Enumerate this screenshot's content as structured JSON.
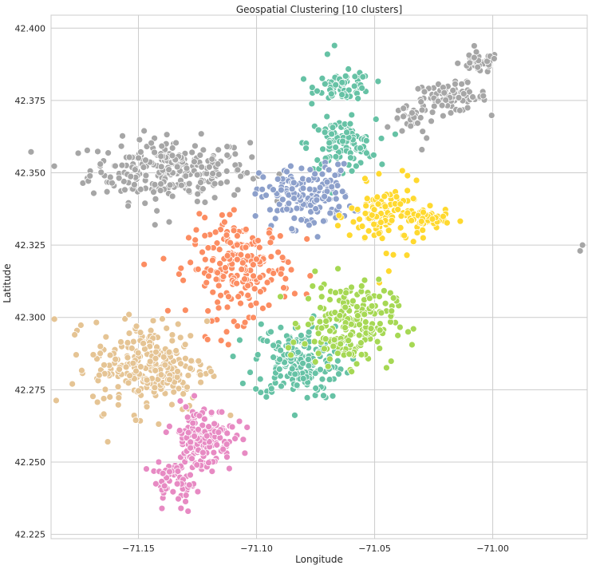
{
  "chart_data": {
    "type": "scatter",
    "title": "Geospatial Clustering [10 clusters]",
    "xlabel": "Longitude",
    "ylabel": "Latitude",
    "xlim": [
      -71.187,
      -70.96
    ],
    "ylim": [
      42.2235,
      42.4045
    ],
    "xticks": [
      -71.15,
      -71.1,
      -71.05,
      -71.0
    ],
    "xtick_labels": [
      "−71.15",
      "−71.10",
      "−71.05",
      "−71.00"
    ],
    "yticks": [
      42.225,
      42.25,
      42.275,
      42.3,
      42.325,
      42.35,
      42.375,
      42.4
    ],
    "ytick_labels": [
      "42.225",
      "42.250",
      "42.275",
      "42.300",
      "42.325",
      "42.350",
      "42.375",
      "42.400"
    ],
    "grid": true,
    "series": [
      {
        "color": "#a6a6a6",
        "regions": [
          {
            "center": [
              -71.137,
              42.351
            ],
            "spread": [
              0.028,
              0.009
            ],
            "n": 260
          },
          {
            "center": [
              -71.018,
              42.376
            ],
            "spread": [
              0.013,
              0.004
            ],
            "n": 90
          },
          {
            "center": [
              -71.006,
              42.388
            ],
            "spread": [
              0.007,
              0.003
            ],
            "n": 45
          },
          {
            "center": [
              -71.035,
              42.368
            ],
            "spread": [
              0.006,
              0.004
            ],
            "n": 25
          }
        ],
        "points": [
          [
            -71.143,
            42.332
          ],
          [
            -71.137,
            42.333
          ],
          [
            -70.963,
            42.323
          ],
          [
            -70.962,
            42.325
          ],
          [
            -71.12,
            42.352
          ],
          [
            -71.104,
            42.35
          ],
          [
            -71.108,
            42.351
          ],
          [
            -71.03,
            42.358
          ],
          [
            -71.028,
            42.362
          ]
        ]
      },
      {
        "color": "#66c2a5",
        "regions": [
          {
            "center": [
              -71.063,
              42.38
            ],
            "spread": [
              0.01,
              0.004
            ],
            "n": 70
          },
          {
            "center": [
              -71.064,
              42.36
            ],
            "spread": [
              0.012,
              0.007
            ],
            "n": 110
          },
          {
            "center": [
              -71.082,
              42.285
            ],
            "spread": [
              0.016,
              0.011
            ],
            "n": 200
          }
        ],
        "points": [
          [
            -71.067,
            42.394
          ],
          [
            -71.07,
            42.391
          ]
        ]
      },
      {
        "color": "#8da0cb",
        "regions": [
          {
            "center": [
              -71.079,
              42.342
            ],
            "spread": [
              0.016,
              0.009
            ],
            "n": 170
          }
        ],
        "points": []
      },
      {
        "color": "#fc8d62",
        "regions": [
          {
            "center": [
              -71.107,
              42.317
            ],
            "spread": [
              0.018,
              0.014
            ],
            "n": 210
          }
        ],
        "points": [
          [
            -71.128,
            42.319
          ],
          [
            -71.132,
            42.317
          ],
          [
            -71.115,
            42.292
          ]
        ]
      },
      {
        "color": "#ffd92f",
        "regions": [
          {
            "center": [
              -71.045,
              42.335
            ],
            "spread": [
              0.013,
              0.009
            ],
            "n": 120
          },
          {
            "center": [
              -71.028,
              42.334
            ],
            "spread": [
              0.008,
              0.003
            ],
            "n": 45
          }
        ],
        "points": [
          [
            -71.048,
            42.312
          ],
          [
            -71.044,
            42.316
          ]
        ]
      },
      {
        "color": "#a6d854",
        "regions": [
          {
            "center": [
              -71.061,
              42.298
            ],
            "spread": [
              0.016,
              0.012
            ],
            "n": 210
          }
        ],
        "points": []
      },
      {
        "color": "#e5c494",
        "regions": [
          {
            "center": [
              -71.145,
              42.283
            ],
            "spread": [
              0.02,
              0.013
            ],
            "n": 250
          }
        ],
        "points": [
          [
            -71.178,
            42.277
          ],
          [
            -71.177,
            42.294
          ],
          [
            -71.163,
            42.257
          ],
          [
            -71.154,
            42.301
          ]
        ]
      },
      {
        "color": "#e78ac3",
        "regions": [
          {
            "center": [
              -71.123,
              42.258
            ],
            "spread": [
              0.011,
              0.01
            ],
            "n": 170
          },
          {
            "center": [
              -71.135,
              42.243
            ],
            "spread": [
              0.008,
              0.005
            ],
            "n": 45
          }
        ],
        "points": [
          [
            -71.129,
            42.233
          ],
          [
            -71.132,
            42.234
          ],
          [
            -71.104,
            42.262
          ]
        ]
      }
    ]
  }
}
